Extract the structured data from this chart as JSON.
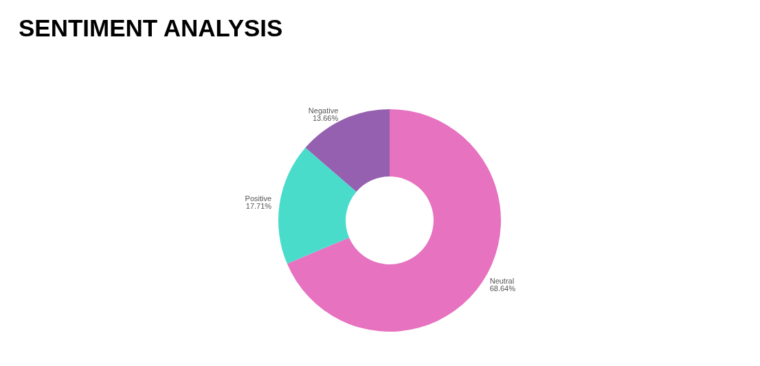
{
  "chart_data": {
    "type": "donut",
    "title": "SENTIMENT ANALYSIS",
    "categories": [
      "Neutral",
      "Positive",
      "Negative"
    ],
    "values": [
      68.64,
      17.71,
      13.66
    ],
    "colors": [
      "#e672c0",
      "#4adccb",
      "#9560b0"
    ],
    "value_labels": [
      "68.64%",
      "17.71%",
      "13.66%"
    ]
  }
}
